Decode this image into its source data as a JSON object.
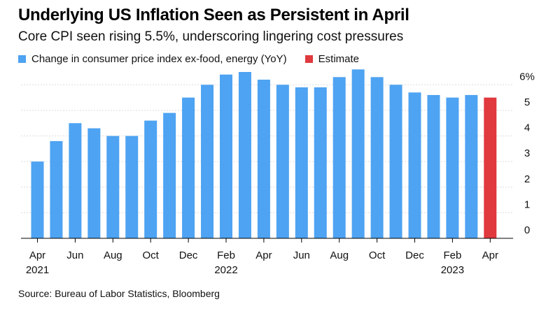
{
  "header": {
    "title": "Underlying US Inflation Seen as Persistent in April",
    "subtitle": "Core CPI seen rising 5.5%, underscoring lingering cost pressures"
  },
  "legend": {
    "items": [
      {
        "label": "Change in consumer price index ex-food, energy (YoY)",
        "color": "#4ea3f2"
      },
      {
        "label": "Estimate",
        "color": "#e0393e"
      }
    ]
  },
  "footer": {
    "source": "Source: Bureau of Labor Statistics, Bloomberg"
  },
  "chart_data": {
    "type": "bar",
    "categories": [
      "Apr 2021",
      "May 2021",
      "Jun 2021",
      "Jul 2021",
      "Aug 2021",
      "Sep 2021",
      "Oct 2021",
      "Nov 2021",
      "Dec 2021",
      "Jan 2022",
      "Feb 2022",
      "Mar 2022",
      "Apr 2022",
      "May 2022",
      "Jun 2022",
      "Jul 2022",
      "Aug 2022",
      "Sep 2022",
      "Oct 2022",
      "Nov 2022",
      "Dec 2022",
      "Jan 2023",
      "Feb 2023",
      "Mar 2023",
      "Apr 2023"
    ],
    "series": [
      {
        "name": "Change in consumer price index ex-food, energy (YoY)",
        "color": "#4ea3f2",
        "values": [
          3.0,
          3.8,
          4.5,
          4.3,
          4.0,
          4.0,
          4.6,
          4.9,
          5.5,
          6.0,
          6.4,
          6.5,
          6.2,
          6.0,
          5.9,
          5.9,
          6.3,
          6.6,
          6.3,
          6.0,
          5.7,
          5.6,
          5.5,
          5.6,
          null
        ]
      },
      {
        "name": "Estimate",
        "color": "#e0393e",
        "values": [
          null,
          null,
          null,
          null,
          null,
          null,
          null,
          null,
          null,
          null,
          null,
          null,
          null,
          null,
          null,
          null,
          null,
          null,
          null,
          null,
          null,
          null,
          null,
          null,
          5.5
        ]
      }
    ],
    "x_tick_labels": [
      {
        "index": 0,
        "month": "Apr",
        "year": "2021"
      },
      {
        "index": 2,
        "month": "Jun",
        "year": ""
      },
      {
        "index": 4,
        "month": "Aug",
        "year": ""
      },
      {
        "index": 6,
        "month": "Oct",
        "year": ""
      },
      {
        "index": 8,
        "month": "Dec",
        "year": ""
      },
      {
        "index": 10,
        "month": "Feb",
        "year": "2022"
      },
      {
        "index": 12,
        "month": "Apr",
        "year": ""
      },
      {
        "index": 14,
        "month": "Jun",
        "year": ""
      },
      {
        "index": 16,
        "month": "Aug",
        "year": ""
      },
      {
        "index": 18,
        "month": "Oct",
        "year": ""
      },
      {
        "index": 20,
        "month": "Dec",
        "year": ""
      },
      {
        "index": 22,
        "month": "Feb",
        "year": "2023"
      },
      {
        "index": 24,
        "month": "Apr",
        "year": ""
      }
    ],
    "y_ticks": [
      {
        "value": 0,
        "label": "0"
      },
      {
        "value": 1,
        "label": "1"
      },
      {
        "value": 2,
        "label": "2"
      },
      {
        "value": 3,
        "label": "3"
      },
      {
        "value": 4,
        "label": "4"
      },
      {
        "value": 5,
        "label": "5"
      },
      {
        "value": 6,
        "label": "6%"
      }
    ],
    "ylim": [
      0,
      6.5
    ],
    "y_axis_side": "right",
    "grid": true,
    "legend_position": "top-left"
  }
}
